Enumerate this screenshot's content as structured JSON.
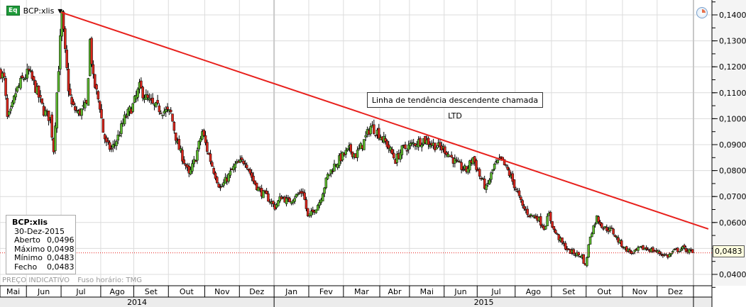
{
  "header": {
    "badge": "Eq",
    "symbol": "BCP:xlis",
    "dropdown_icon": "caret-down"
  },
  "legend": {
    "title": "BCP:xlis",
    "date": "30-Dez-2015",
    "rows": [
      {
        "label": "Aberto",
        "value": "0,0496"
      },
      {
        "label": "Máximo",
        "value": "0,0498"
      },
      {
        "label": "Mínimo",
        "value": "0,0483"
      },
      {
        "label": "Fecho",
        "value": "0,0483"
      }
    ]
  },
  "footer": {
    "price_note": "PREÇO INDICATIVO",
    "timezone": "Fuso horário: TMG"
  },
  "annotation": "Linha de tendência descendente chamada LTD",
  "last_price_label": "0,0483",
  "chart_data": {
    "type": "candlestick",
    "x_unit": "trading_day",
    "xlim": [
      0,
      420
    ],
    "ylim": [
      0.035,
      0.145
    ],
    "yticks": [
      0.04,
      0.05,
      0.06,
      0.07,
      0.08,
      0.09,
      0.1,
      0.11,
      0.12,
      0.13,
      0.14
    ],
    "ytick_labels": [
      "0,0400",
      "",
      "0,0600",
      "0,0700",
      "0,0800",
      "0,0900",
      "0,1000",
      "0,1100",
      "0,1200",
      "0,1300",
      "0,1400"
    ],
    "months": [
      {
        "label": "Mai",
        "start": 0
      },
      {
        "label": "Jun",
        "start": 16
      },
      {
        "label": "Jul",
        "start": 37
      },
      {
        "label": "Ago",
        "start": 61
      },
      {
        "label": "Set",
        "start": 81
      },
      {
        "label": "Out",
        "start": 102
      },
      {
        "label": "Nov",
        "start": 124
      },
      {
        "label": "Dez",
        "start": 145
      },
      {
        "label": "Jan",
        "start": 166
      },
      {
        "label": "Fev",
        "start": 187
      },
      {
        "label": "Mar",
        "start": 208
      },
      {
        "label": "Abr",
        "start": 230
      },
      {
        "label": "Mai",
        "start": 248
      },
      {
        "label": "Jun",
        "start": 269
      },
      {
        "label": "Jul",
        "start": 289
      },
      {
        "label": "Ago",
        "start": 312
      },
      {
        "label": "Set",
        "start": 334
      },
      {
        "label": "Out",
        "start": 355
      },
      {
        "label": "Nov",
        "start": 377
      },
      {
        "label": "Dez",
        "start": 398
      },
      {
        "label": "",
        "start": 420
      }
    ],
    "years": [
      {
        "label": "2014",
        "start": 0
      },
      {
        "label": "2015",
        "start": 166
      }
    ],
    "close_path": [
      [
        0,
        0.118
      ],
      [
        2,
        0.115
      ],
      [
        4,
        0.1
      ],
      [
        6,
        0.102
      ],
      [
        9,
        0.11
      ],
      [
        13,
        0.115
      ],
      [
        17,
        0.118
      ],
      [
        21,
        0.112
      ],
      [
        26,
        0.103
      ],
      [
        30,
        0.1
      ],
      [
        32,
        0.088
      ],
      [
        34,
        0.11
      ],
      [
        37,
        0.14
      ],
      [
        39,
        0.125
      ],
      [
        41,
        0.112
      ],
      [
        43,
        0.105
      ],
      [
        47,
        0.102
      ],
      [
        52,
        0.105
      ],
      [
        54,
        0.13
      ],
      [
        56,
        0.115
      ],
      [
        60,
        0.105
      ],
      [
        62,
        0.095
      ],
      [
        64,
        0.09
      ],
      [
        67,
        0.088
      ],
      [
        71,
        0.093
      ],
      [
        75,
        0.1
      ],
      [
        80,
        0.105
      ],
      [
        84,
        0.112
      ],
      [
        88,
        0.108
      ],
      [
        92,
        0.105
      ],
      [
        99,
        0.103
      ],
      [
        103,
        0.102
      ],
      [
        107,
        0.09
      ],
      [
        112,
        0.082
      ],
      [
        114,
        0.078
      ],
      [
        118,
        0.085
      ],
      [
        122,
        0.095
      ],
      [
        125,
        0.088
      ],
      [
        129,
        0.08
      ],
      [
        133,
        0.073
      ],
      [
        138,
        0.078
      ],
      [
        142,
        0.082
      ],
      [
        148,
        0.084
      ],
      [
        153,
        0.076
      ],
      [
        157,
        0.072
      ],
      [
        161,
        0.07
      ],
      [
        166,
        0.066
      ],
      [
        170,
        0.07
      ],
      [
        174,
        0.068
      ],
      [
        178,
        0.07
      ],
      [
        183,
        0.072
      ],
      [
        186,
        0.062
      ],
      [
        189,
        0.064
      ],
      [
        193,
        0.068
      ],
      [
        198,
        0.078
      ],
      [
        202,
        0.082
      ],
      [
        206,
        0.085
      ],
      [
        211,
        0.088
      ],
      [
        215,
        0.086
      ],
      [
        219,
        0.09
      ],
      [
        224,
        0.097
      ],
      [
        228,
        0.095
      ],
      [
        234,
        0.09
      ],
      [
        239,
        0.084
      ],
      [
        243,
        0.088
      ],
      [
        249,
        0.09
      ],
      [
        256,
        0.092
      ],
      [
        262,
        0.09
      ],
      [
        269,
        0.088
      ],
      [
        273,
        0.085
      ],
      [
        277,
        0.082
      ],
      [
        282,
        0.08
      ],
      [
        286,
        0.085
      ],
      [
        290,
        0.078
      ],
      [
        294,
        0.073
      ],
      [
        299,
        0.082
      ],
      [
        303,
        0.084
      ],
      [
        307,
        0.08
      ],
      [
        312,
        0.073
      ],
      [
        316,
        0.066
      ],
      [
        320,
        0.063
      ],
      [
        325,
        0.062
      ],
      [
        329,
        0.058
      ],
      [
        332,
        0.063
      ],
      [
        335,
        0.057
      ],
      [
        340,
        0.052
      ],
      [
        344,
        0.049
      ],
      [
        348,
        0.048
      ],
      [
        352,
        0.047
      ],
      [
        354,
        0.043
      ],
      [
        357,
        0.055
      ],
      [
        361,
        0.062
      ],
      [
        365,
        0.058
      ],
      [
        370,
        0.057
      ],
      [
        374,
        0.053
      ],
      [
        378,
        0.05
      ],
      [
        383,
        0.048
      ],
      [
        387,
        0.05
      ],
      [
        391,
        0.05
      ],
      [
        396,
        0.049
      ],
      [
        400,
        0.048
      ],
      [
        404,
        0.047
      ],
      [
        408,
        0.049
      ],
      [
        413,
        0.05
      ],
      [
        417,
        0.049
      ],
      [
        419,
        0.0483
      ]
    ],
    "last_candle": {
      "open": 0.0496,
      "high": 0.0498,
      "low": 0.0483,
      "close": 0.0483
    },
    "trendline": {
      "from": [
        37,
        0.141
      ],
      "to": [
        429,
        0.0575
      ],
      "color": "#e8201c"
    },
    "reference_line": {
      "value": 0.0483,
      "color": "#e8201c",
      "style": "dotted"
    },
    "colors": {
      "up": "#5cb82e",
      "down": "#d9261c",
      "wick": "#000000"
    }
  }
}
